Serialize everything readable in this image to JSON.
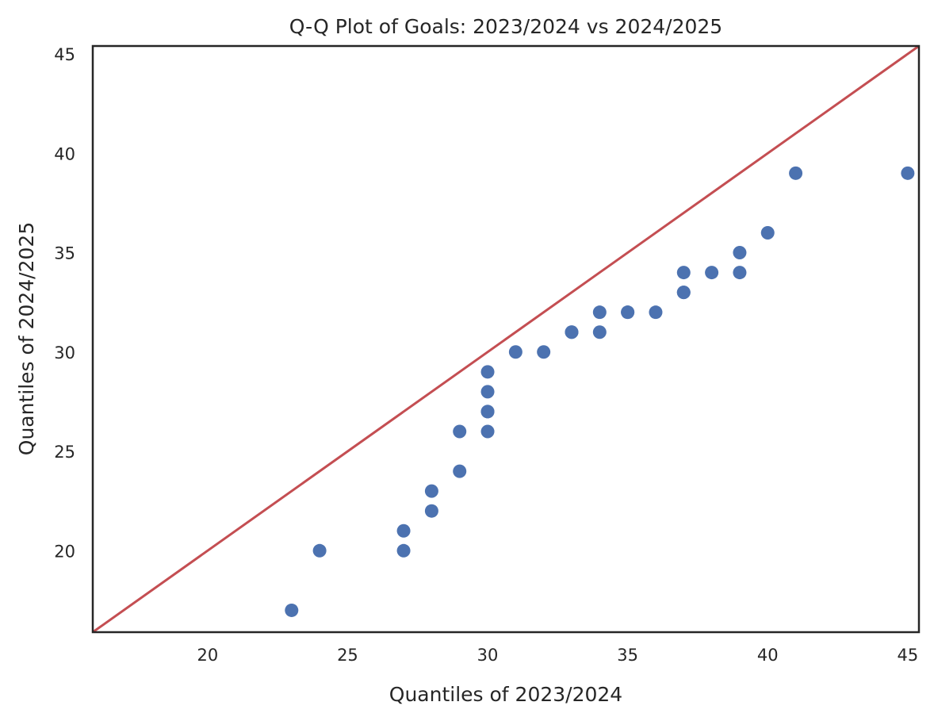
{
  "chart_data": {
    "type": "scatter",
    "title": "Q-Q Plot of Goals: 2023/2024 vs 2024/2025",
    "xlabel": "Quantiles of 2023/2024",
    "ylabel": "Quantiles of 2024/2025",
    "xlim": [
      15.9,
      45.4
    ],
    "ylim": [
      15.9,
      45.4
    ],
    "xticks": [
      20,
      25,
      30,
      35,
      40,
      45
    ],
    "yticks": [
      20,
      25,
      30,
      35,
      40,
      45
    ],
    "grid": false,
    "reference_line": {
      "slope": 1,
      "intercept": 0,
      "color": "#c44e52"
    },
    "marker_color": "#4c72b0",
    "series": [
      {
        "points": [
          {
            "x": 23,
            "y": 17
          },
          {
            "x": 24,
            "y": 20
          },
          {
            "x": 27,
            "y": 20
          },
          {
            "x": 27,
            "y": 21
          },
          {
            "x": 28,
            "y": 22
          },
          {
            "x": 28,
            "y": 23
          },
          {
            "x": 29,
            "y": 24
          },
          {
            "x": 29,
            "y": 26
          },
          {
            "x": 30,
            "y": 26
          },
          {
            "x": 30,
            "y": 27
          },
          {
            "x": 30,
            "y": 27
          },
          {
            "x": 30,
            "y": 28
          },
          {
            "x": 30,
            "y": 29
          },
          {
            "x": 31,
            "y": 30
          },
          {
            "x": 32,
            "y": 30
          },
          {
            "x": 33,
            "y": 31
          },
          {
            "x": 33,
            "y": 31
          },
          {
            "x": 34,
            "y": 31
          },
          {
            "x": 34,
            "y": 32
          },
          {
            "x": 35,
            "y": 32
          },
          {
            "x": 35,
            "y": 32
          },
          {
            "x": 36,
            "y": 32
          },
          {
            "x": 37,
            "y": 33
          },
          {
            "x": 37,
            "y": 33
          },
          {
            "x": 37,
            "y": 34
          },
          {
            "x": 38,
            "y": 34
          },
          {
            "x": 39,
            "y": 34
          },
          {
            "x": 39,
            "y": 35
          },
          {
            "x": 40,
            "y": 36
          },
          {
            "x": 41,
            "y": 39
          },
          {
            "x": 45,
            "y": 39
          }
        ]
      }
    ]
  }
}
